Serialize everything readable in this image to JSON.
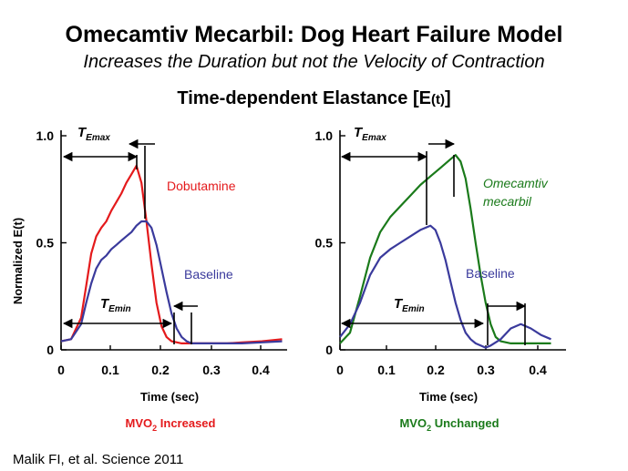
{
  "header": {
    "title": "Omecamtiv Mecarbil: Dog Heart Failure Model",
    "subtitle": "Increases the Duration but not the Velocity of Contraction",
    "section_title_main": "Time-dependent Elastance [E",
    "section_title_sub": "(t)",
    "section_title_end": "]"
  },
  "citation": "Malik FI, et al.  Science 2011",
  "shared_ylabel": "Normalized E(t)",
  "chart_data": [
    {
      "type": "line",
      "xlabel": "Time (sec)",
      "ylabel": "Normalized E(t)",
      "xlim": [
        0,
        0.45
      ],
      "ylim": [
        0,
        1.0
      ],
      "xticks": [
        "0",
        "0.1",
        "0.2",
        "0.3",
        "0.4"
      ],
      "yticks": [
        "0",
        "0.5",
        "1.0"
      ],
      "footer": "MVO",
      "footer_sub": "2",
      "footer_end": " Increased",
      "footer_color": "#e41a1c",
      "annotation_emax": "T",
      "annotation_emax_sub": "Emax",
      "annotation_emin": "T",
      "annotation_emin_sub": "Emin",
      "series": [
        {
          "name": "Dobutamine",
          "label_lines": [
            "Dobutamine"
          ],
          "italic": false,
          "color": "#e41a1c",
          "x": [
            0,
            0.02,
            0.04,
            0.05,
            0.06,
            0.07,
            0.08,
            0.09,
            0.1,
            0.11,
            0.12,
            0.13,
            0.14,
            0.15,
            0.16,
            0.17,
            0.18,
            0.19,
            0.2,
            0.21,
            0.22,
            0.24,
            0.27,
            0.3,
            0.33,
            0.36,
            0.4,
            0.44
          ],
          "y": [
            0.04,
            0.05,
            0.15,
            0.3,
            0.45,
            0.53,
            0.57,
            0.6,
            0.65,
            0.69,
            0.73,
            0.78,
            0.82,
            0.86,
            0.78,
            0.6,
            0.4,
            0.22,
            0.11,
            0.06,
            0.04,
            0.03,
            0.03,
            0.03,
            0.03,
            0.035,
            0.04,
            0.05
          ]
        },
        {
          "name": "Baseline",
          "label_lines": [
            "Baseline"
          ],
          "italic": false,
          "color": "#3a3a9c",
          "x": [
            0,
            0.02,
            0.04,
            0.05,
            0.06,
            0.07,
            0.08,
            0.09,
            0.1,
            0.11,
            0.12,
            0.13,
            0.14,
            0.15,
            0.16,
            0.17,
            0.18,
            0.19,
            0.2,
            0.21,
            0.22,
            0.23,
            0.24,
            0.25,
            0.26,
            0.28,
            0.32,
            0.36,
            0.4,
            0.44
          ],
          "y": [
            0.04,
            0.05,
            0.12,
            0.22,
            0.31,
            0.38,
            0.42,
            0.44,
            0.47,
            0.49,
            0.51,
            0.53,
            0.55,
            0.58,
            0.6,
            0.6,
            0.57,
            0.49,
            0.38,
            0.27,
            0.17,
            0.1,
            0.06,
            0.04,
            0.03,
            0.03,
            0.03,
            0.03,
            0.035,
            0.04
          ]
        }
      ]
    },
    {
      "type": "line",
      "xlabel": "Time (sec)",
      "xlim": [
        0,
        0.45
      ],
      "ylim": [
        0,
        1.0
      ],
      "xticks": [
        "0",
        "0.1",
        "0.2",
        "0.3",
        "0.4"
      ],
      "yticks": [
        "0",
        "0.5",
        "1.0"
      ],
      "footer": "MVO",
      "footer_sub": "2",
      "footer_end": " Unchanged",
      "footer_color": "#1a7a1a",
      "annotation_emax": "T",
      "annotation_emax_sub": "Emax",
      "annotation_emin": "T",
      "annotation_emin_sub": "Emin",
      "series": [
        {
          "name": "Omecamtiv mecarbil",
          "label_lines": [
            "Omecamtiv",
            "mecarbil"
          ],
          "italic": true,
          "color": "#1a7a1a",
          "x": [
            0,
            0.02,
            0.04,
            0.06,
            0.08,
            0.1,
            0.12,
            0.14,
            0.16,
            0.18,
            0.2,
            0.22,
            0.23,
            0.24,
            0.25,
            0.26,
            0.27,
            0.28,
            0.29,
            0.3,
            0.31,
            0.32,
            0.34,
            0.36,
            0.38,
            0.4,
            0.42
          ],
          "y": [
            0.03,
            0.08,
            0.25,
            0.43,
            0.55,
            0.62,
            0.67,
            0.72,
            0.77,
            0.81,
            0.85,
            0.89,
            0.91,
            0.88,
            0.8,
            0.66,
            0.5,
            0.35,
            0.22,
            0.12,
            0.06,
            0.04,
            0.03,
            0.03,
            0.03,
            0.03,
            0.03
          ]
        },
        {
          "name": "Baseline",
          "label_lines": [
            "Baseline"
          ],
          "italic": false,
          "color": "#3a3a9c",
          "x": [
            0,
            0.02,
            0.04,
            0.06,
            0.08,
            0.1,
            0.12,
            0.14,
            0.16,
            0.18,
            0.19,
            0.2,
            0.21,
            0.22,
            0.23,
            0.24,
            0.25,
            0.26,
            0.27,
            0.28,
            0.29,
            0.3,
            0.32,
            0.34,
            0.36,
            0.38,
            0.4,
            0.42
          ],
          "y": [
            0.06,
            0.12,
            0.22,
            0.35,
            0.43,
            0.47,
            0.5,
            0.53,
            0.56,
            0.58,
            0.56,
            0.5,
            0.42,
            0.32,
            0.22,
            0.14,
            0.08,
            0.05,
            0.03,
            0.02,
            0.01,
            0.02,
            0.05,
            0.1,
            0.12,
            0.1,
            0.07,
            0.05
          ]
        }
      ]
    }
  ]
}
